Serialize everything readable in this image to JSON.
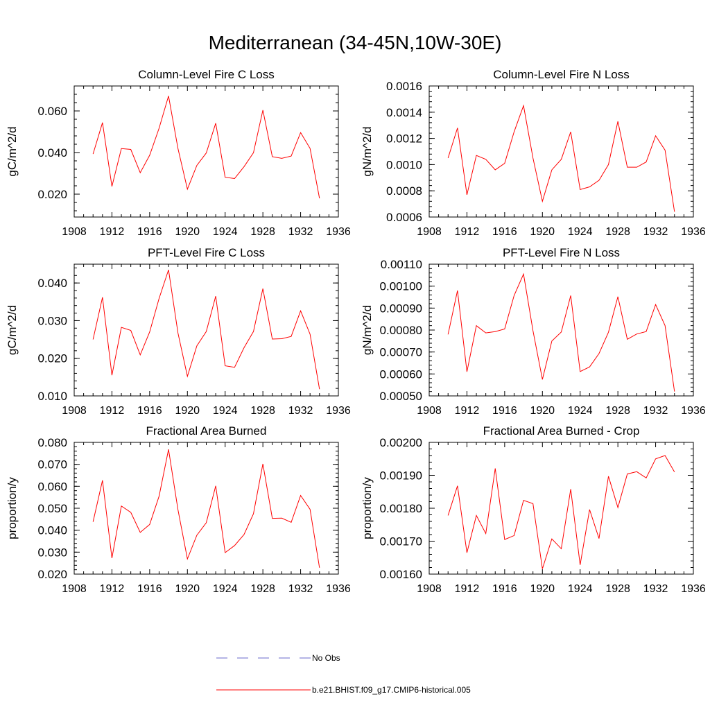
{
  "title": "Mediterranean (34-45N,10W-30E)",
  "legend": {
    "obs_label": "No Obs",
    "obs_color": "#6a6acb",
    "model_label": "b.e21.BHIST.f09_g17.CMIP6-historical.005",
    "model_color": "#ff0000"
  },
  "chart_data": [
    {
      "type": "line",
      "title": "Column-Level Fire C Loss",
      "xlabel": "",
      "ylabel": "gC/m^2/d",
      "xlim": [
        1908,
        1936
      ],
      "ylim": [
        0.009,
        0.072
      ],
      "yticks": [
        0.02,
        0.04,
        0.06
      ],
      "ytick_labels": [
        "0.020",
        "0.040",
        "0.060"
      ],
      "xticks": [
        1908,
        1912,
        1916,
        1920,
        1924,
        1928,
        1932,
        1936
      ],
      "xtick_labels": [
        "1908",
        "1912",
        "1916",
        "1920",
        "1924",
        "1928",
        "1932",
        "1936"
      ],
      "x": [
        1910,
        1911,
        1912,
        1913,
        1914,
        1915,
        1916,
        1917,
        1918,
        1919,
        1920,
        1921,
        1922,
        1923,
        1924,
        1925,
        1926,
        1927,
        1928,
        1929,
        1930,
        1931,
        1932,
        1933,
        1934
      ],
      "series": [
        {
          "name": "b.e21.BHIST.f09_g17.CMIP6-historical.005",
          "color": "#ff0000",
          "values": [
            0.0393,
            0.0544,
            0.0237,
            0.0419,
            0.0415,
            0.0303,
            0.0387,
            0.0517,
            0.0672,
            0.0419,
            0.0224,
            0.0338,
            0.0398,
            0.0541,
            0.0281,
            0.0275,
            0.0332,
            0.0399,
            0.0604,
            0.038,
            0.0372,
            0.0383,
            0.0496,
            0.042,
            0.018
          ]
        }
      ]
    },
    {
      "type": "line",
      "title": "Column-Level Fire N Loss",
      "xlabel": "",
      "ylabel": "gN/m^2/d",
      "xlim": [
        1908,
        1936
      ],
      "ylim": [
        0.0006,
        0.0016
      ],
      "yticks": [
        0.0006,
        0.0008,
        0.001,
        0.0012,
        0.0014,
        0.0016
      ],
      "ytick_labels": [
        "0.0006",
        "0.0008",
        "0.0010",
        "0.0012",
        "0.0014",
        "0.0016"
      ],
      "xticks": [
        1908,
        1912,
        1916,
        1920,
        1924,
        1928,
        1932,
        1936
      ],
      "xtick_labels": [
        "1908",
        "1912",
        "1916",
        "1920",
        "1924",
        "1928",
        "1932",
        "1936"
      ],
      "x": [
        1910,
        1911,
        1912,
        1913,
        1914,
        1915,
        1916,
        1917,
        1918,
        1919,
        1920,
        1921,
        1922,
        1923,
        1924,
        1925,
        1926,
        1927,
        1928,
        1929,
        1930,
        1931,
        1932,
        1933,
        1934
      ],
      "series": [
        {
          "name": "b.e21.BHIST.f09_g17.CMIP6-historical.005",
          "color": "#ff0000",
          "values": [
            0.00105,
            0.00128,
            0.00077,
            0.00107,
            0.00104,
            0.00096,
            0.00101,
            0.00125,
            0.00145,
            0.00105,
            0.00072,
            0.00096,
            0.00104,
            0.00125,
            0.00081,
            0.00083,
            0.00088,
            0.001,
            0.00133,
            0.00098,
            0.00098,
            0.00102,
            0.00122,
            0.00111,
            0.00064
          ]
        }
      ]
    },
    {
      "type": "line",
      "title": "PFT-Level Fire C Loss",
      "xlabel": "",
      "ylabel": "gC/m^2/d",
      "xlim": [
        1908,
        1936
      ],
      "ylim": [
        0.01,
        0.045
      ],
      "yticks": [
        0.01,
        0.02,
        0.03,
        0.04
      ],
      "ytick_labels": [
        "0.010",
        "0.020",
        "0.030",
        "0.040"
      ],
      "xticks": [
        1908,
        1912,
        1916,
        1920,
        1924,
        1928,
        1932,
        1936
      ],
      "xtick_labels": [
        "1908",
        "1912",
        "1916",
        "1920",
        "1924",
        "1928",
        "1932",
        "1936"
      ],
      "x": [
        1910,
        1911,
        1912,
        1913,
        1914,
        1915,
        1916,
        1917,
        1918,
        1919,
        1920,
        1921,
        1922,
        1923,
        1924,
        1925,
        1926,
        1927,
        1928,
        1929,
        1930,
        1931,
        1932,
        1933,
        1934
      ],
      "series": [
        {
          "name": "b.e21.BHIST.f09_g17.CMIP6-historical.005",
          "color": "#ff0000",
          "values": [
            0.025,
            0.0362,
            0.0155,
            0.0282,
            0.0274,
            0.0209,
            0.027,
            0.0359,
            0.0435,
            0.0267,
            0.0152,
            0.0233,
            0.0271,
            0.0365,
            0.018,
            0.0176,
            0.0228,
            0.0271,
            0.0385,
            0.0251,
            0.0252,
            0.0258,
            0.0326,
            0.0264,
            0.0118
          ]
        }
      ]
    },
    {
      "type": "line",
      "title": "PFT-Level Fire N Loss",
      "xlabel": "",
      "ylabel": "gN/m^2/d",
      "xlim": [
        1908,
        1936
      ],
      "ylim": [
        0.0005,
        0.0011
      ],
      "yticks": [
        0.0005,
        0.0006,
        0.0007,
        0.0008,
        0.0009,
        0.001,
        0.0011
      ],
      "ytick_labels": [
        "0.00050",
        "0.00060",
        "0.00070",
        "0.00080",
        "0.00090",
        "0.00100",
        "0.00110"
      ],
      "xticks": [
        1908,
        1912,
        1916,
        1920,
        1924,
        1928,
        1932,
        1936
      ],
      "xtick_labels": [
        "1908",
        "1912",
        "1916",
        "1920",
        "1924",
        "1928",
        "1932",
        "1936"
      ],
      "x": [
        1910,
        1911,
        1912,
        1913,
        1914,
        1915,
        1916,
        1917,
        1918,
        1919,
        1920,
        1921,
        1922,
        1923,
        1924,
        1925,
        1926,
        1927,
        1928,
        1929,
        1930,
        1931,
        1932,
        1933,
        1934
      ],
      "series": [
        {
          "name": "b.e21.BHIST.f09_g17.CMIP6-historical.005",
          "color": "#ff0000",
          "values": [
            0.00078,
            0.00098,
            0.00061,
            0.00082,
            0.000787,
            0.000793,
            0.000805,
            0.000957,
            0.001055,
            0.000797,
            0.000575,
            0.00075,
            0.000791,
            0.000957,
            0.000611,
            0.000632,
            0.000693,
            0.00079,
            0.000952,
            0.000758,
            0.000782,
            0.000793,
            0.000916,
            0.00082,
            0.00052
          ]
        }
      ]
    },
    {
      "type": "line",
      "title": "Fractional Area Burned",
      "xlabel": "",
      "ylabel": "proportion/y",
      "xlim": [
        1908,
        1936
      ],
      "ylim": [
        0.02,
        0.08
      ],
      "yticks": [
        0.02,
        0.03,
        0.04,
        0.05,
        0.06,
        0.07,
        0.08
      ],
      "ytick_labels": [
        "0.020",
        "0.030",
        "0.040",
        "0.050",
        "0.060",
        "0.070",
        "0.080"
      ],
      "xticks": [
        1908,
        1912,
        1916,
        1920,
        1924,
        1928,
        1932,
        1936
      ],
      "xtick_labels": [
        "1908",
        "1912",
        "1916",
        "1920",
        "1924",
        "1928",
        "1932",
        "1936"
      ],
      "x": [
        1910,
        1911,
        1912,
        1913,
        1914,
        1915,
        1916,
        1917,
        1918,
        1919,
        1920,
        1921,
        1922,
        1923,
        1924,
        1925,
        1926,
        1927,
        1928,
        1929,
        1930,
        1931,
        1932,
        1933,
        1934
      ],
      "series": [
        {
          "name": "b.e21.BHIST.f09_g17.CMIP6-historical.005",
          "color": "#ff0000",
          "values": [
            0.0438,
            0.0627,
            0.0273,
            0.051,
            0.0481,
            0.039,
            0.0426,
            0.0555,
            0.0768,
            0.0493,
            0.0269,
            0.0377,
            0.0434,
            0.0602,
            0.0298,
            0.033,
            0.038,
            0.0475,
            0.0702,
            0.0454,
            0.0455,
            0.0436,
            0.0558,
            0.0495,
            0.0229
          ]
        }
      ]
    },
    {
      "type": "line",
      "title": "Fractional Area Burned - Crop",
      "xlabel": "",
      "ylabel": "proportion/y",
      "xlim": [
        1908,
        1936
      ],
      "ylim": [
        0.0016,
        0.002
      ],
      "yticks": [
        0.0016,
        0.0017,
        0.0018,
        0.0019,
        0.002
      ],
      "ytick_labels": [
        "0.00160",
        "0.00170",
        "0.00180",
        "0.00190",
        "0.00200"
      ],
      "xticks": [
        1908,
        1912,
        1916,
        1920,
        1924,
        1928,
        1932,
        1936
      ],
      "xtick_labels": [
        "1908",
        "1912",
        "1916",
        "1920",
        "1924",
        "1928",
        "1932",
        "1936"
      ],
      "x": [
        1910,
        1911,
        1912,
        1913,
        1914,
        1915,
        1916,
        1917,
        1918,
        1919,
        1920,
        1921,
        1922,
        1923,
        1924,
        1925,
        1926,
        1927,
        1928,
        1929,
        1930,
        1931,
        1932,
        1933,
        1934
      ],
      "series": [
        {
          "name": "b.e21.BHIST.f09_g17.CMIP6-historical.005",
          "color": "#ff0000",
          "values": [
            0.001778,
            0.001868,
            0.001665,
            0.001778,
            0.001723,
            0.001921,
            0.001705,
            0.001717,
            0.001824,
            0.001814,
            0.001616,
            0.001707,
            0.001677,
            0.001858,
            0.001628,
            0.001796,
            0.001708,
            0.001897,
            0.001802,
            0.001904,
            0.001911,
            0.001892,
            0.00195,
            0.00196,
            0.00191
          ]
        }
      ]
    }
  ]
}
